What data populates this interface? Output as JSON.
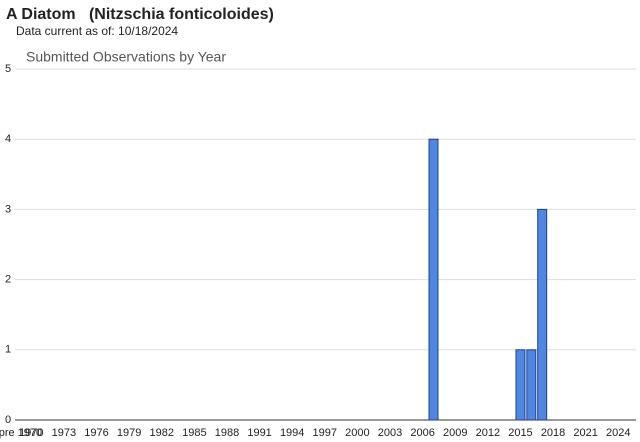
{
  "chart_data": {
    "type": "bar",
    "title": "A Diatom   (Nitzschia fonticoloides)",
    "subtitle": "Data current as of: 10/18/2024",
    "chart_title": "Submitted Observations by Year",
    "categories": [
      "pre 1970",
      "1970",
      null,
      null,
      "1973",
      null,
      null,
      "1976",
      null,
      null,
      "1979",
      null,
      null,
      "1982",
      null,
      null,
      "1985",
      null,
      null,
      "1988",
      null,
      null,
      "1991",
      null,
      null,
      "1994",
      null,
      null,
      "1997",
      null,
      null,
      "2000",
      null,
      null,
      "2003",
      null,
      null,
      "2006",
      null,
      null,
      "2009",
      null,
      null,
      "2012",
      null,
      null,
      "2015",
      null,
      null,
      "2018",
      null,
      null,
      "2021",
      null,
      null,
      "2024"
    ],
    "values": [
      0,
      0,
      0,
      0,
      0,
      0,
      0,
      0,
      0,
      0,
      0,
      0,
      0,
      0,
      0,
      0,
      0,
      0,
      0,
      0,
      0,
      0,
      0,
      0,
      0,
      0,
      0,
      0,
      0,
      0,
      0,
      0,
      0,
      0,
      0,
      0,
      0,
      0,
      4,
      0,
      0,
      0,
      0,
      0,
      0,
      0,
      1,
      1,
      3,
      0,
      0,
      0,
      0,
      0,
      0,
      0
    ],
    "color": "#4f86e0",
    "ylim": [
      0,
      5
    ],
    "yticks": [
      0,
      1,
      2,
      3,
      4,
      5
    ],
    "grid": true
  }
}
